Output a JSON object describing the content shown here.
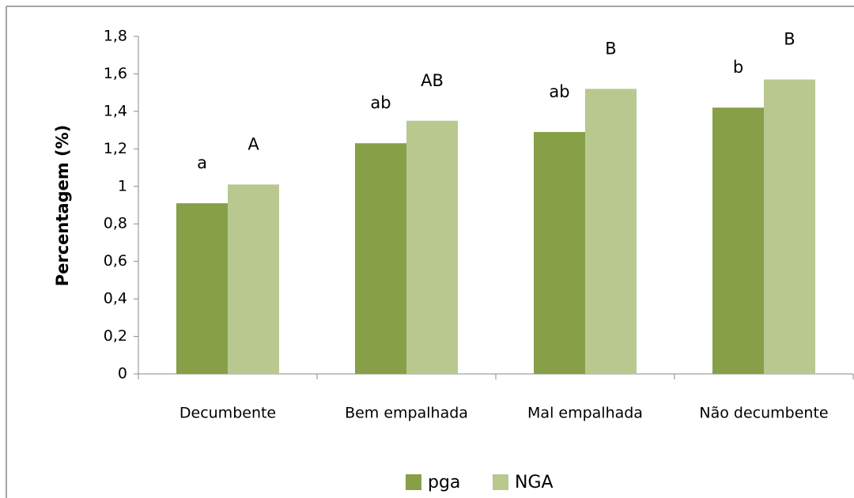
{
  "chart_data": {
    "type": "bar",
    "y_label": "Percentagem (%)",
    "categories": [
      "Decumbente",
      "Bem empalhada",
      "Mal empalhada",
      "Não decumbente"
    ],
    "series": [
      {
        "name": "pga",
        "color": "#87a047",
        "values": [
          0.91,
          1.23,
          1.29,
          1.42
        ],
        "annotations": [
          "a",
          "ab",
          "ab",
          "b"
        ]
      },
      {
        "name": "NGA",
        "color": "#b8c88f",
        "values": [
          1.01,
          1.35,
          1.52,
          1.57
        ],
        "annotations": [
          "A",
          "AB",
          "B",
          "B"
        ]
      }
    ],
    "ylim": [
      0,
      1.8
    ],
    "yticks": [
      0,
      {
        "value": 0.2,
        "label": "0,2"
      },
      {
        "value": 0.4,
        "label": "0,4"
      },
      {
        "value": 0.6,
        "label": "0,6"
      },
      {
        "value": 0.8,
        "label": "0,8"
      },
      1,
      {
        "value": 1.2,
        "label": "1,2"
      },
      {
        "value": 1.4,
        "label": "1,4"
      },
      {
        "value": 1.6,
        "label": "1,6"
      },
      {
        "value": 1.8,
        "label": "1,8"
      }
    ],
    "legend": "bottom"
  }
}
